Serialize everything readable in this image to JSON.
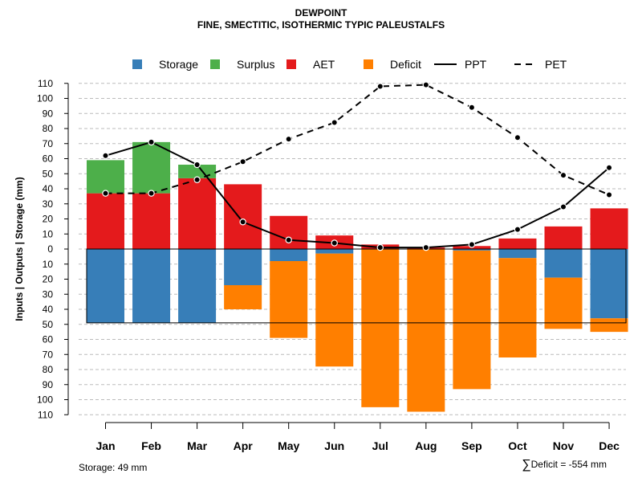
{
  "title": "DEWPOINT",
  "subtitle": "FINE, SMECTITIC, ISOTHERMIC TYPIC PALEUSTALFS",
  "footer": {
    "storage_note": "Storage: 49 mm",
    "deficit_sigma": "∑",
    "deficit_note": "Deficit = -554 mm"
  },
  "colors": {
    "storage": "#377EB8",
    "surplus": "#4DAF4A",
    "aet": "#E41A1C",
    "deficit": "#FF7F00",
    "grid": "#bbbbbb",
    "line": "#000000"
  },
  "chart_data": {
    "type": "bar",
    "title": "DEWPOINT",
    "subtitle": "FINE, SMECTITIC, ISOTHERMIC TYPIC PALEUSTALFS",
    "ylabel": "Inputs | Outputs | Storage    (mm)",
    "xlabel": "",
    "ylim": [
      -110,
      110
    ],
    "yticks": [
      110,
      100,
      90,
      80,
      70,
      60,
      50,
      40,
      30,
      20,
      10,
      0,
      -10,
      -20,
      -30,
      -40,
      -50,
      -60,
      -70,
      -80,
      -90,
      -100,
      -110
    ],
    "ytick_labels": [
      "110",
      "100",
      "90",
      "80",
      "70",
      "60",
      "50",
      "40",
      "30",
      "20",
      "10",
      "0",
      "10",
      "20",
      "30",
      "40",
      "50",
      "60",
      "70",
      "80",
      "90",
      "100",
      "110"
    ],
    "grid": true,
    "legend_position": "top",
    "legend": [
      {
        "name": "Storage",
        "kind": "box",
        "color": "#377EB8"
      },
      {
        "name": "Surplus",
        "kind": "box",
        "color": "#4DAF4A"
      },
      {
        "name": "AET",
        "kind": "box",
        "color": "#E41A1C"
      },
      {
        "name": "Deficit",
        "kind": "box",
        "color": "#FF7F00"
      },
      {
        "name": "PPT",
        "kind": "solid"
      },
      {
        "name": "PET",
        "kind": "dashed"
      }
    ],
    "categories": [
      "Jan",
      "Feb",
      "Mar",
      "Apr",
      "May",
      "Jun",
      "Jul",
      "Aug",
      "Sep",
      "Oct",
      "Nov",
      "Dec"
    ],
    "storage_capacity": 49,
    "series": [
      {
        "name": "AET",
        "values": [
          37,
          37,
          47,
          43,
          22,
          9,
          3,
          1,
          2,
          7,
          15,
          27
        ]
      },
      {
        "name": "Surplus",
        "values": [
          22,
          34,
          9,
          0,
          0,
          0,
          0,
          0,
          0,
          0,
          0,
          0
        ]
      },
      {
        "name": "Storage",
        "values": [
          49,
          49,
          49,
          24,
          8,
          3,
          0,
          0,
          1,
          6,
          19,
          46
        ]
      },
      {
        "name": "Deficit",
        "values": [
          0,
          0,
          0,
          -16,
          -51,
          -75,
          -105,
          -108,
          -92,
          -66,
          -34,
          -9
        ]
      },
      {
        "name": "PPT",
        "values": [
          62,
          71,
          56,
          18,
          6,
          4,
          1,
          1,
          3,
          13,
          28,
          54
        ]
      },
      {
        "name": "PET",
        "values": [
          37,
          37,
          46,
          58,
          73,
          84,
          108,
          109,
          94,
          74,
          49,
          36
        ]
      }
    ]
  }
}
